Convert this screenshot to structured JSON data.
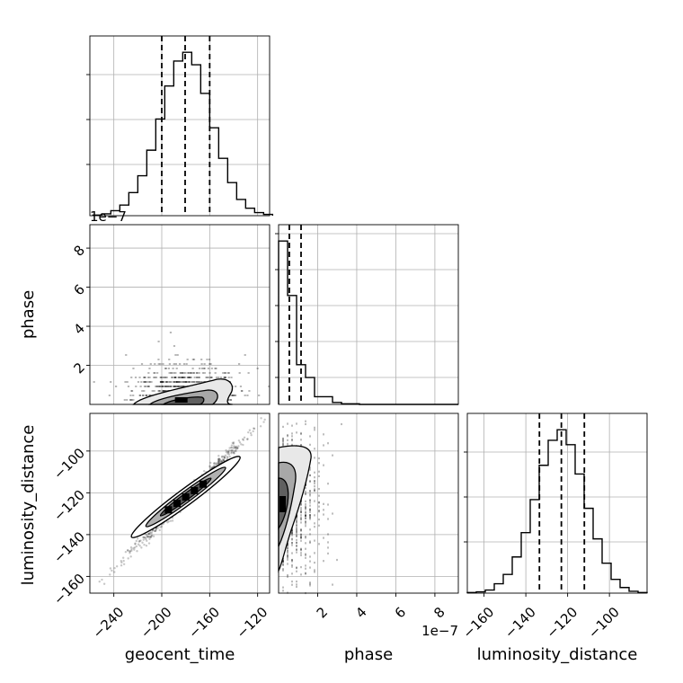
{
  "chart_data": {
    "type": "corner",
    "parameters": [
      "geocent_time",
      "phase",
      "luminosity_distance"
    ],
    "ranges": {
      "geocent_time": [
        -260,
        -110
      ],
      "phase": [
        0,
        9.2
      ],
      "luminosity_distance": [
        -168,
        -82
      ]
    },
    "ticks": {
      "geocent_time": {
        "values": [
          -240,
          -200,
          -160,
          -120
        ],
        "labels": [
          "−240",
          "−200",
          "−160",
          "−120"
        ]
      },
      "phase": {
        "values": [
          2,
          4,
          6,
          8
        ],
        "labels": [
          "2",
          "4",
          "6",
          "8"
        ]
      },
      "luminosity_distance_x": {
        "values": [
          -160,
          -140,
          -120,
          -100
        ],
        "labels": [
          "−160",
          "−140",
          "−120",
          "−100"
        ]
      },
      "luminosity_distance_y": {
        "values": [
          -160,
          -140,
          -120,
          -100
        ],
        "labels": [
          "−160",
          "−140",
          "−120",
          "−100"
        ]
      }
    },
    "scale_text": {
      "phase_y": "1e−7",
      "phase_x": "1e−7"
    },
    "labels": {
      "x": [
        "geocent_time",
        "phase",
        "luminosity_distance"
      ],
      "y": [
        "phase",
        "luminosity_distance"
      ]
    },
    "grid": true,
    "histograms": {
      "geocent_time": {
        "bin_edges": [
          -257.5,
          -250,
          -242.5,
          -235,
          -227.5,
          -220,
          -212.5,
          -205,
          -197.5,
          -190,
          -182.5,
          -175,
          -167.5,
          -160,
          -152.5,
          -145,
          -137.5,
          -130,
          -122.5,
          -115,
          -107.5
        ],
        "counts": [
          1,
          3,
          8,
          17,
          37,
          64,
          105,
          155,
          208,
          248,
          262,
          242,
          196,
          141,
          92,
          53,
          26,
          12,
          5,
          2
        ],
        "quantiles": [
          -200,
          -180.5,
          -160
        ]
      },
      "phase": {
        "bin_edges": [
          0,
          0.46,
          0.92,
          1.38,
          1.84,
          2.3,
          2.76,
          3.22,
          3.68,
          4.14,
          4.6,
          5.06,
          5.52,
          5.98,
          6.44,
          6.9,
          7.36,
          7.82,
          8.28,
          8.74,
          9.2
        ],
        "counts": [
          255,
          170,
          62,
          42,
          12,
          12,
          3,
          1,
          1,
          0,
          0,
          0,
          0,
          0,
          0,
          0,
          0,
          0,
          0,
          0
        ],
        "quantiles": [
          0.55,
          1.15
        ]
      },
      "luminosity_distance": {
        "bin_edges": [
          -168,
          -163.7,
          -159.4,
          -155.1,
          -150.8,
          -146.5,
          -142.2,
          -137.9,
          -133.6,
          -129.3,
          -125,
          -120.7,
          -116.4,
          -112.1,
          -107.8,
          -103.5,
          -99.2,
          -94.9,
          -90.6,
          -86.3,
          -82
        ],
        "counts": [
          1,
          2,
          5,
          15,
          30,
          58,
          97,
          150,
          205,
          245,
          262,
          238,
          191,
          136,
          87,
          48,
          22,
          9,
          3,
          1
        ],
        "quantiles": [
          -133.5,
          -123,
          -112
        ]
      }
    },
    "contours_2d": {
      "phase_vs_geocent_time": {
        "center": [
          -180,
          0.5
        ],
        "spread": [
          22,
          0.9
        ]
      },
      "luminosity_distance_vs_geocent_time": {
        "slope": 0.57,
        "intercept": -19.5,
        "center": [
          -180,
          -122
        ]
      },
      "luminosity_distance_vs_phase": {
        "center": [
          0.3,
          -125
        ],
        "spread": [
          0.6,
          18
        ]
      }
    }
  }
}
